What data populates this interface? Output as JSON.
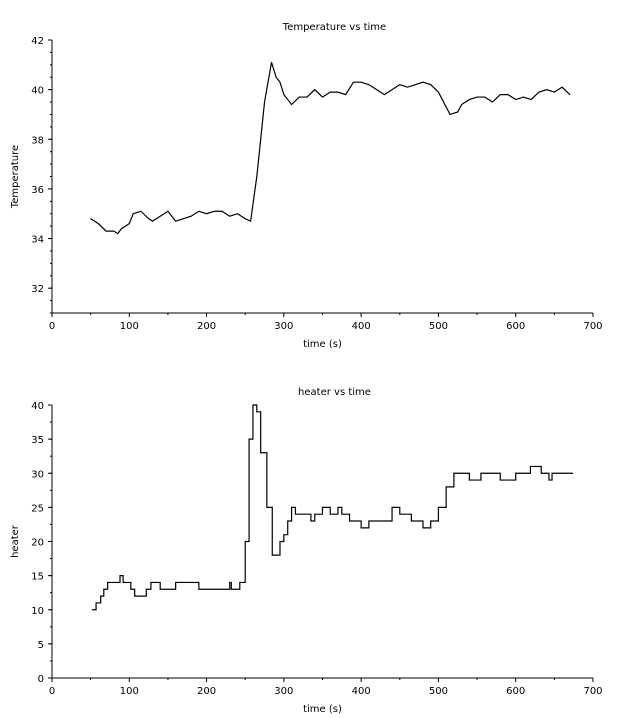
{
  "chart_data": [
    {
      "type": "line",
      "title": "Temperature vs time",
      "xlabel": "time (s)",
      "ylabel": "Temperature",
      "xlim": [
        0,
        700
      ],
      "ylim": [
        31,
        42
      ],
      "xticks": [
        0,
        100,
        200,
        300,
        400,
        500,
        600,
        700
      ],
      "yticks": [
        32,
        34,
        36,
        38,
        40,
        42
      ],
      "grid": false,
      "color": "#000000",
      "x": [
        50,
        60,
        70,
        80,
        85,
        90,
        100,
        105,
        115,
        125,
        130,
        140,
        150,
        160,
        170,
        180,
        190,
        200,
        210,
        220,
        230,
        240,
        250,
        257,
        265,
        275,
        284,
        290,
        295,
        300,
        310,
        320,
        330,
        340,
        350,
        360,
        370,
        380,
        390,
        400,
        410,
        420,
        430,
        440,
        450,
        460,
        470,
        480,
        490,
        500,
        505,
        515,
        525,
        530,
        540,
        550,
        560,
        570,
        580,
        590,
        600,
        610,
        620,
        630,
        640,
        650,
        660,
        670
      ],
      "y": [
        34.8,
        34.6,
        34.3,
        34.3,
        34.2,
        34.4,
        34.6,
        35.0,
        35.1,
        34.8,
        34.7,
        34.9,
        35.1,
        34.7,
        34.8,
        34.9,
        35.1,
        35.0,
        35.1,
        35.1,
        34.9,
        35.0,
        34.8,
        34.7,
        36.5,
        39.5,
        41.1,
        40.5,
        40.3,
        39.8,
        39.4,
        39.7,
        39.7,
        40.0,
        39.7,
        39.9,
        39.9,
        39.8,
        40.3,
        40.3,
        40.2,
        40.0,
        39.8,
        40.0,
        40.2,
        40.1,
        40.2,
        40.3,
        40.2,
        39.9,
        39.6,
        39.0,
        39.1,
        39.4,
        39.6,
        39.7,
        39.7,
        39.5,
        39.8,
        39.8,
        39.6,
        39.7,
        39.6,
        39.9,
        40.0,
        39.9,
        40.1,
        39.8
      ]
    },
    {
      "type": "line",
      "step": true,
      "title": "heater vs time",
      "xlabel": "time (s)",
      "ylabel": "heater",
      "xlim": [
        0,
        700
      ],
      "ylim": [
        0,
        40
      ],
      "xticks": [
        0,
        100,
        200,
        300,
        400,
        500,
        600,
        700
      ],
      "yticks": [
        0,
        5,
        10,
        15,
        20,
        25,
        30,
        35,
        40
      ],
      "grid": false,
      "color": "#000000",
      "x": [
        52,
        57,
        63,
        67,
        72,
        88,
        92,
        102,
        107,
        122,
        128,
        140,
        160,
        190,
        230,
        232,
        243,
        250,
        255,
        260,
        265,
        270,
        278,
        285,
        290,
        295,
        300,
        305,
        310,
        315,
        335,
        340,
        350,
        360,
        370,
        375,
        385,
        400,
        410,
        440,
        450,
        465,
        480,
        490,
        500,
        510,
        520,
        540,
        555,
        580,
        600,
        619,
        633,
        643,
        647,
        674
      ],
      "y": [
        10,
        11,
        12,
        13,
        14,
        15,
        14,
        13,
        12,
        13,
        14,
        13,
        14,
        13,
        14,
        13,
        14,
        20,
        35,
        40,
        39,
        33,
        25,
        18,
        18,
        20,
        21,
        23,
        25,
        24,
        23,
        24,
        25,
        24,
        25,
        24,
        23,
        22,
        23,
        25,
        24,
        23,
        22,
        23,
        25,
        28,
        30,
        29,
        30,
        29,
        30,
        31,
        30,
        29,
        30,
        30
      ]
    }
  ]
}
